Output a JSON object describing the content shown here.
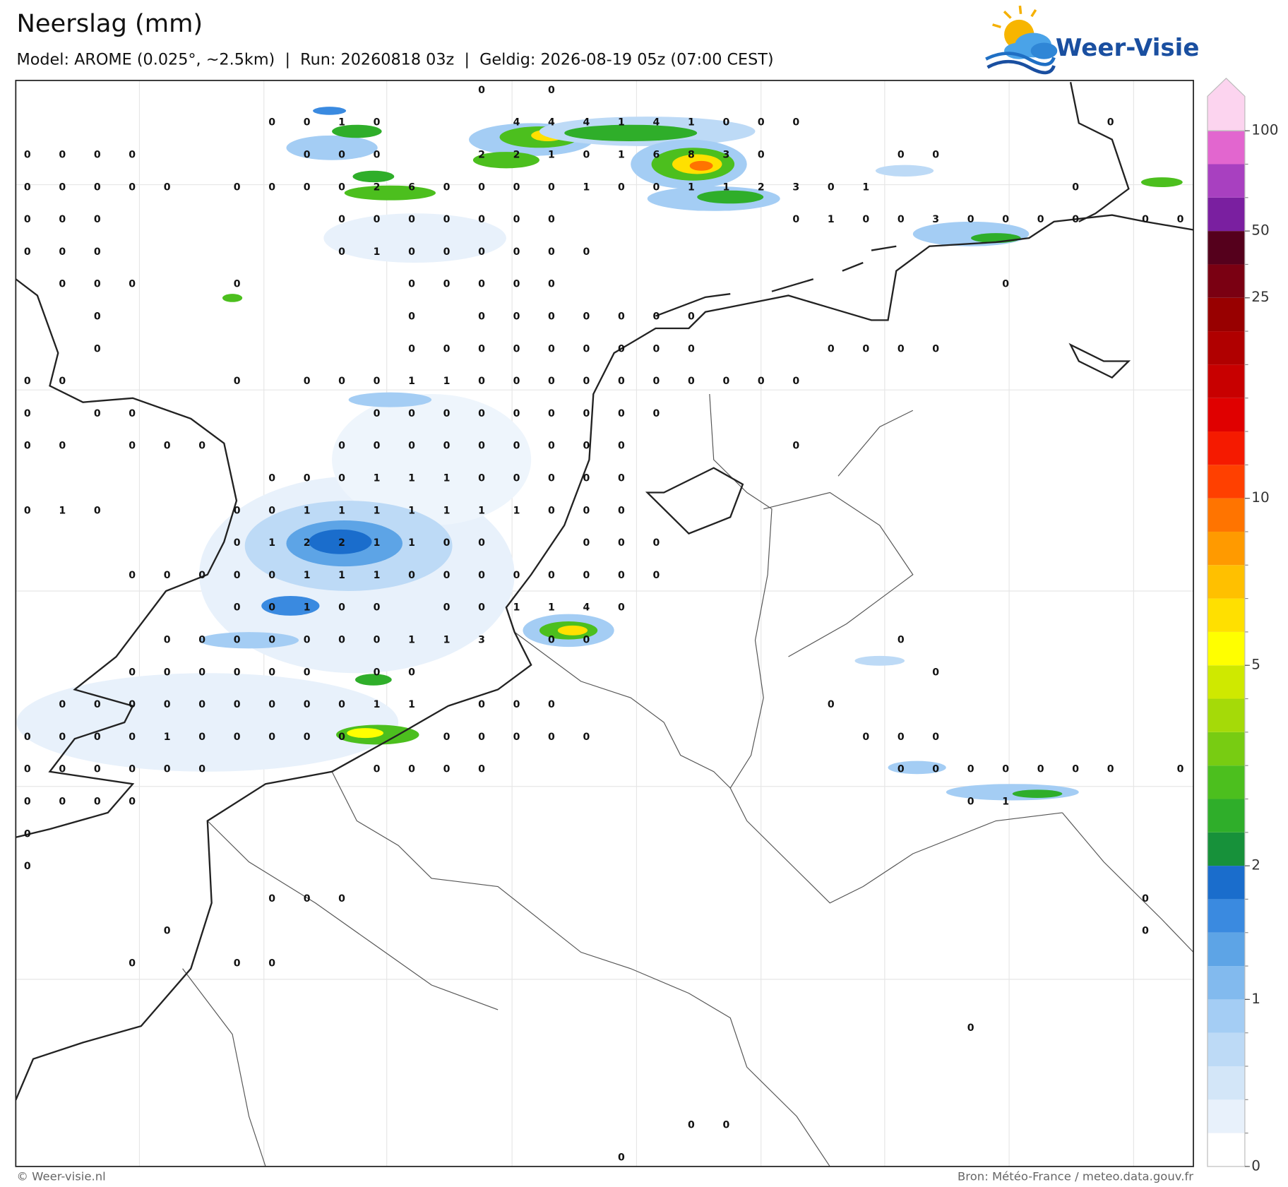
{
  "header": {
    "title": "Neerslag (mm)",
    "subtitle": "Model: AROME (0.025°, ~2.5km)  |  Run: 20260818 03z  |  Geldig: 2026-08-19 05z (07:00 CEST)"
  },
  "logo": {
    "text": "Weer-Visie"
  },
  "map": {
    "grid_values": [
      [
        null,
        null,
        null,
        null,
        null,
        null,
        null,
        null,
        null,
        null,
        null,
        null,
        null,
        0,
        null,
        0
      ],
      [
        null,
        null,
        null,
        null,
        null,
        null,
        null,
        0,
        0,
        1,
        0,
        null,
        null,
        null,
        4,
        4,
        4,
        1,
        4,
        1,
        0,
        0,
        0,
        null,
        null,
        null,
        null,
        null,
        null,
        null,
        null,
        0
      ],
      [
        0,
        0,
        0,
        0,
        null,
        null,
        null,
        null,
        0,
        0,
        0,
        null,
        null,
        2,
        2,
        1,
        0,
        1,
        6,
        8,
        3,
        0,
        null,
        null,
        null,
        0,
        0
      ],
      [
        0,
        0,
        0,
        0,
        0,
        null,
        0,
        0,
        0,
        0,
        2,
        6,
        0,
        0,
        0,
        0,
        1,
        0,
        0,
        1,
        1,
        2,
        3,
        0,
        1,
        null,
        null,
        null,
        null,
        null,
        0
      ],
      [
        0,
        0,
        0,
        null,
        null,
        null,
        null,
        null,
        null,
        0,
        0,
        0,
        0,
        0,
        0,
        0,
        null,
        null,
        null,
        null,
        null,
        null,
        0,
        1,
        0,
        0,
        3,
        0,
        0,
        0,
        0,
        null,
        0,
        0
      ],
      [
        0,
        0,
        0,
        null,
        null,
        null,
        null,
        null,
        null,
        0,
        1,
        0,
        0,
        0,
        0,
        0,
        0
      ],
      [
        null,
        0,
        0,
        0,
        null,
        null,
        0,
        null,
        null,
        null,
        null,
        0,
        0,
        0,
        0,
        0,
        null,
        null,
        null,
        null,
        null,
        null,
        null,
        null,
        null,
        null,
        null,
        null,
        0
      ],
      [
        null,
        null,
        0,
        null,
        null,
        null,
        null,
        null,
        null,
        null,
        null,
        0,
        null,
        0,
        0,
        0,
        0,
        0,
        0,
        0
      ],
      [
        null,
        null,
        0,
        null,
        null,
        null,
        null,
        null,
        null,
        null,
        null,
        0,
        0,
        0,
        0,
        0,
        0,
        0,
        0,
        0,
        null,
        null,
        null,
        0,
        0,
        0,
        0
      ],
      [
        0,
        0,
        null,
        null,
        null,
        null,
        0,
        null,
        0,
        0,
        0,
        1,
        1,
        0,
        0,
        0,
        0,
        0,
        0,
        0,
        0,
        0,
        0
      ],
      [
        0,
        null,
        0,
        0,
        null,
        null,
        null,
        null,
        null,
        null,
        0,
        0,
        0,
        0,
        0,
        0,
        0,
        0,
        0
      ],
      [
        0,
        0,
        null,
        0,
        0,
        0,
        null,
        null,
        null,
        0,
        0,
        0,
        0,
        0,
        0,
        0,
        0,
        0,
        null,
        null,
        null,
        null,
        0
      ],
      [
        null,
        null,
        null,
        null,
        null,
        null,
        null,
        0,
        0,
        0,
        1,
        1,
        1,
        0,
        0,
        0,
        0,
        0
      ],
      [
        0,
        1,
        0,
        null,
        null,
        null,
        0,
        0,
        1,
        1,
        1,
        1,
        1,
        1,
        1,
        0,
        0,
        0
      ],
      [
        null,
        null,
        null,
        null,
        null,
        null,
        0,
        1,
        2,
        2,
        1,
        1,
        0,
        0,
        null,
        null,
        0,
        0,
        0
      ],
      [
        null,
        null,
        null,
        0,
        0,
        0,
        0,
        0,
        1,
        1,
        1,
        0,
        0,
        0,
        0,
        0,
        0,
        0,
        0
      ],
      [
        null,
        null,
        null,
        null,
        null,
        null,
        0,
        0,
        1,
        0,
        0,
        null,
        0,
        0,
        1,
        1,
        4,
        0
      ],
      [
        null,
        null,
        null,
        null,
        0,
        0,
        0,
        0,
        0,
        0,
        0,
        1,
        1,
        3,
        null,
        0,
        0,
        null,
        null,
        null,
        null,
        null,
        null,
        null,
        null,
        0
      ],
      [
        null,
        null,
        null,
        0,
        0,
        0,
        0,
        0,
        0,
        null,
        0,
        0,
        null,
        null,
        null,
        null,
        null,
        null,
        null,
        null,
        null,
        null,
        null,
        null,
        null,
        null,
        0
      ],
      [
        null,
        0,
        0,
        0,
        0,
        0,
        0,
        0,
        0,
        0,
        1,
        1,
        null,
        0,
        0,
        0,
        null,
        null,
        null,
        null,
        null,
        null,
        null,
        0
      ],
      [
        0,
        0,
        0,
        0,
        1,
        0,
        0,
        0,
        0,
        0,
        null,
        null,
        0,
        0,
        0,
        0,
        0,
        null,
        null,
        null,
        null,
        null,
        null,
        null,
        0,
        0,
        0
      ],
      [
        0,
        0,
        0,
        0,
        0,
        0,
        null,
        null,
        null,
        null,
        0,
        0,
        0,
        0,
        null,
        null,
        null,
        null,
        null,
        null,
        null,
        null,
        null,
        null,
        null,
        0,
        0,
        0,
        0,
        0,
        0,
        0,
        null,
        0
      ],
      [
        0,
        0,
        0,
        0,
        null,
        null,
        null,
        null,
        null,
        null,
        null,
        null,
        null,
        null,
        null,
        null,
        null,
        null,
        null,
        null,
        null,
        null,
        null,
        null,
        null,
        null,
        null,
        0,
        1
      ],
      [
        0
      ],
      [
        0
      ],
      [
        null,
        null,
        null,
        null,
        null,
        null,
        null,
        0,
        0,
        0,
        null,
        null,
        null,
        null,
        null,
        null,
        null,
        null,
        null,
        null,
        null,
        null,
        null,
        null,
        null,
        null,
        null,
        null,
        null,
        null,
        null,
        null,
        0
      ],
      [
        null,
        null,
        null,
        null,
        0,
        null,
        null,
        null,
        null,
        null,
        null,
        null,
        null,
        null,
        null,
        null,
        null,
        null,
        null,
        null,
        null,
        null,
        null,
        null,
        null,
        null,
        null,
        null,
        null,
        null,
        null,
        null,
        0
      ],
      [
        null,
        null,
        null,
        0,
        null,
        null,
        0,
        0
      ],
      [],
      [
        null,
        null,
        null,
        null,
        null,
        null,
        null,
        null,
        null,
        null,
        null,
        null,
        null,
        null,
        null,
        null,
        null,
        null,
        null,
        null,
        null,
        null,
        null,
        null,
        null,
        null,
        null,
        0
      ],
      [],
      [],
      [
        null,
        null,
        null,
        null,
        null,
        null,
        null,
        null,
        null,
        null,
        null,
        null,
        null,
        null,
        null,
        null,
        null,
        null,
        null,
        0,
        0
      ],
      [
        null,
        null,
        null,
        null,
        null,
        null,
        null,
        null,
        null,
        null,
        null,
        null,
        null,
        null,
        null,
        null,
        null,
        0
      ]
    ]
  },
  "colorbar": {
    "colors": [
      "#ffffff",
      "#e8f1fb",
      "#d3e6f8",
      "#bddaf6",
      "#a4cdf4",
      "#82baee",
      "#5da4e6",
      "#3a8ae0",
      "#1a6dcc",
      "#17913a",
      "#2fae2a",
      "#4cbf1e",
      "#78cc12",
      "#a5da08",
      "#cfe900",
      "#ffff00",
      "#ffe000",
      "#ffc000",
      "#ff9a00",
      "#ff7400",
      "#ff4000",
      "#f51a00",
      "#e00000",
      "#c80000",
      "#b00000",
      "#980000",
      "#7a0012",
      "#55001c",
      "#7a1fa0",
      "#a840c0",
      "#e266cf",
      "#fcd4ef"
    ],
    "ticks": [
      0,
      1,
      2,
      5,
      10,
      25,
      50,
      100
    ]
  },
  "footer": {
    "left": "© Weer-visie.nl",
    "right": "Bron: Météo-France / meteo.data.gouv.fr"
  }
}
